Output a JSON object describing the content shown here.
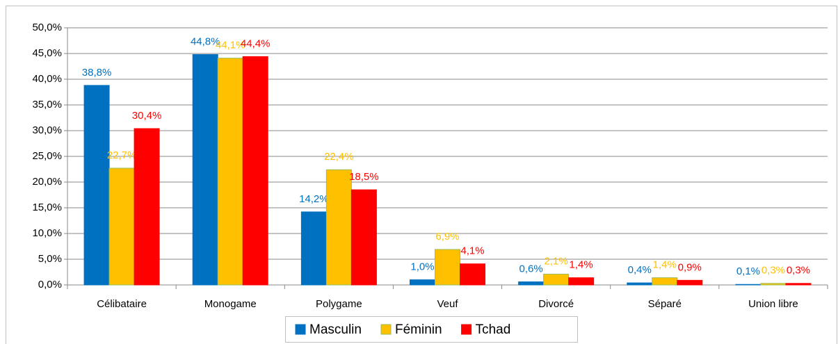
{
  "chart_data": {
    "type": "bar",
    "categories": [
      "Célibataire",
      "Monogame",
      "Polygame",
      "Veuf",
      "Divorcé",
      "Séparé",
      "Union libre"
    ],
    "series": [
      {
        "name": "Masculin",
        "color": "#0070c0",
        "values": [
          38.8,
          44.8,
          14.2,
          1.0,
          0.6,
          0.4,
          0.1
        ],
        "value_labels": [
          "38,8%",
          "44,8%",
          "14,2%",
          "1,0%",
          "0,6%",
          "0,4%",
          "0,1%"
        ]
      },
      {
        "name": "Féminin",
        "color": "#ffc000",
        "values": [
          22.7,
          44.1,
          22.4,
          6.9,
          2.1,
          1.4,
          0.3
        ],
        "value_labels": [
          "22,7%",
          "44,1%",
          "22,4%",
          "6,9%",
          "2,1%",
          "1,4%",
          "0,3%"
        ]
      },
      {
        "name": "Tchad",
        "color": "#ff0000",
        "values": [
          30.4,
          44.4,
          18.5,
          4.1,
          1.4,
          0.9,
          0.3
        ],
        "value_labels": [
          "30,4%",
          "44,4%",
          "18,5%",
          "4,1%",
          "1,4%",
          "0,9%",
          "0,3%"
        ]
      }
    ],
    "ylim": [
      0,
      50
    ],
    "yticks": [
      {
        "value": 0,
        "label": "0,0%"
      },
      {
        "value": 5,
        "label": "5,0%"
      },
      {
        "value": 10,
        "label": "10,0%"
      },
      {
        "value": 15,
        "label": "15,0%"
      },
      {
        "value": 20,
        "label": "20,0%"
      },
      {
        "value": 25,
        "label": "25,0%"
      },
      {
        "value": 30,
        "label": "30,0%"
      },
      {
        "value": 35,
        "label": "35,0%"
      },
      {
        "value": 40,
        "label": "40,0%"
      },
      {
        "value": 45,
        "label": "45,0%"
      },
      {
        "value": 50,
        "label": "50,0%"
      }
    ],
    "grid": true,
    "legend": "bottom"
  }
}
